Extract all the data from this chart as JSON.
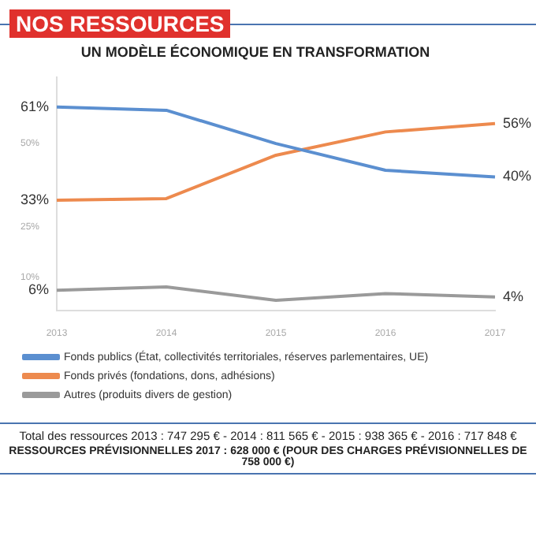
{
  "chart_data": {
    "type": "line",
    "title": "NOS RESSOURCES",
    "subtitle": "UN MODÈLE ÉCONOMIQUE EN TRANSFORMATION",
    "categories": [
      "2013",
      "2014",
      "2015",
      "2016",
      "2017"
    ],
    "series": [
      {
        "name": "Fonds publics (État, collectivités territoriales, réserves parlementaires, UE)",
        "color": "#5b8fd0",
        "values": [
          61,
          60,
          50,
          42,
          40
        ],
        "value_labels": [
          "61%",
          null,
          null,
          null,
          "40%"
        ]
      },
      {
        "name": "Fonds privés (fondations, dons, adhésions)",
        "color": "#ed8a4e",
        "values": [
          33,
          33.5,
          46.5,
          53.5,
          56
        ],
        "value_labels": [
          "33%",
          null,
          null,
          null,
          "56%"
        ]
      },
      {
        "name": "Autres (produits divers de gestion)",
        "color": "#9a9a9a",
        "values": [
          6,
          7,
          3,
          5,
          4
        ],
        "value_labels": [
          "6%",
          null,
          null,
          null,
          "4%"
        ]
      }
    ],
    "ylim": [
      0,
      70
    ],
    "yticks": [
      {
        "value": 10,
        "label": "10%"
      },
      {
        "value": 25,
        "label": "25%"
      },
      {
        "value": 50,
        "label": "50%"
      }
    ],
    "grid": false,
    "legend": "bottom",
    "marker": "none",
    "line_style": "solid",
    "annotations": [
      "Total des ressources 2013 : 747 295 € - 2014 : 811 565 € - 2015 : 938 365 € - 2016 : 717 848 €",
      "RESSOURCES PRÉVISIONNELLES 2017 : 628 000 € (POUR DES CHARGES PRÉVISIONNELLES DE 758 000 €)"
    ]
  }
}
